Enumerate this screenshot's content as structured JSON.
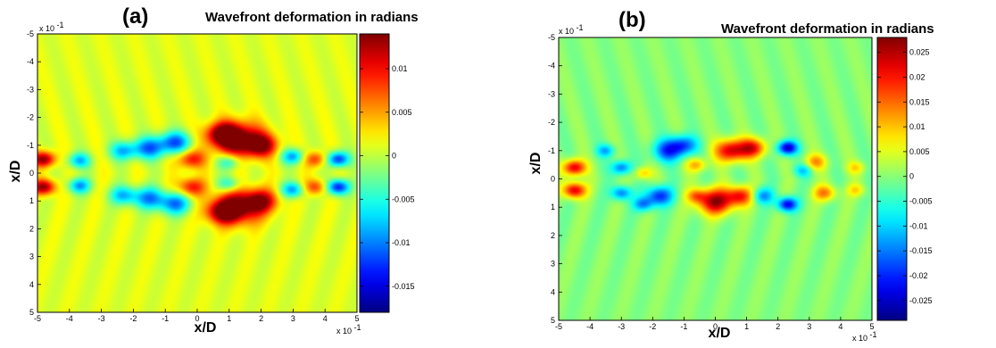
{
  "chart_data": [
    {
      "type": "heatmap",
      "panel_label": "(a)",
      "title": "Wavefront deformation in radians",
      "xlabel": "x/D",
      "ylabel": "x/D",
      "axis_multiplier": "x 10",
      "axis_multiplier_exp": "-1",
      "xlim": [
        -5,
        5
      ],
      "ylim": [
        -5,
        5
      ],
      "y_reversed": true,
      "x_ticks": [
        "-5",
        "-4",
        "-3",
        "-2",
        "-1",
        "0",
        "1",
        "2",
        "3",
        "4",
        "5"
      ],
      "y_ticks": [
        "-5",
        "-4",
        "-3",
        "-2",
        "-1",
        "0",
        "1",
        "2",
        "3",
        "4",
        "5"
      ],
      "colormap": "jet",
      "clim": [
        -0.018,
        0.014
      ],
      "colorbar_ticks": [
        "0.01",
        "0.005",
        "0",
        "-0.005",
        "-0.01",
        "-0.015"
      ],
      "colorbar_values": [
        0.01,
        0.005,
        0,
        -0.005,
        -0.01,
        -0.015
      ],
      "background_value": 0.001,
      "features": [
        {
          "x": 1.3,
          "y": -1.2,
          "value": 0.014,
          "width": 0.55
        },
        {
          "x": 2.0,
          "y": -1.0,
          "value": 0.011,
          "width": 0.35
        },
        {
          "x": 0.8,
          "y": -1.4,
          "value": 0.012,
          "width": 0.35
        },
        {
          "x": 1.3,
          "y": 1.2,
          "value": 0.013,
          "width": 0.55
        },
        {
          "x": 2.0,
          "y": 1.0,
          "value": 0.01,
          "width": 0.35
        },
        {
          "x": 0.8,
          "y": 1.4,
          "value": 0.011,
          "width": 0.35
        },
        {
          "x": -0.7,
          "y": -1.1,
          "value": -0.012,
          "width": 0.35
        },
        {
          "x": -1.5,
          "y": -0.9,
          "value": -0.011,
          "width": 0.35
        },
        {
          "x": -2.3,
          "y": -0.8,
          "value": -0.009,
          "width": 0.3
        },
        {
          "x": -0.7,
          "y": 1.1,
          "value": -0.011,
          "width": 0.35
        },
        {
          "x": -1.5,
          "y": 0.9,
          "value": -0.01,
          "width": 0.35
        },
        {
          "x": -2.3,
          "y": 0.8,
          "value": -0.009,
          "width": 0.3
        },
        {
          "x": -4.8,
          "y": -0.5,
          "value": 0.013,
          "width": 0.25
        },
        {
          "x": -4.8,
          "y": 0.5,
          "value": 0.013,
          "width": 0.25
        },
        {
          "x": 4.4,
          "y": -0.5,
          "value": -0.014,
          "width": 0.25
        },
        {
          "x": 4.4,
          "y": 0.5,
          "value": -0.015,
          "width": 0.25
        },
        {
          "x": -3.7,
          "y": -0.45,
          "value": -0.009,
          "width": 0.25
        },
        {
          "x": -3.7,
          "y": 0.45,
          "value": -0.01,
          "width": 0.25
        },
        {
          "x": 3.0,
          "y": -0.6,
          "value": -0.01,
          "width": 0.25
        },
        {
          "x": 3.0,
          "y": 0.6,
          "value": -0.01,
          "width": 0.25
        },
        {
          "x": -0.2,
          "y": -0.5,
          "value": 0.009,
          "width": 0.3
        },
        {
          "x": -0.2,
          "y": 0.5,
          "value": 0.009,
          "width": 0.3
        },
        {
          "x": 3.7,
          "y": -0.5,
          "value": 0.008,
          "width": 0.25
        },
        {
          "x": 3.7,
          "y": 0.5,
          "value": 0.008,
          "width": 0.25
        },
        {
          "x": 1.0,
          "y": -0.4,
          "value": -0.007,
          "width": 0.25
        },
        {
          "x": 1.0,
          "y": 0.4,
          "value": -0.007,
          "width": 0.25
        }
      ]
    },
    {
      "type": "heatmap",
      "panel_label": "(b)",
      "title": "Wavefront deformation in radians",
      "xlabel": "x/D",
      "ylabel": "x/D",
      "axis_multiplier": "x 10",
      "axis_multiplier_exp": "-1",
      "xlim": [
        -5,
        5
      ],
      "ylim": [
        -5,
        5
      ],
      "y_reversed": true,
      "x_ticks": [
        "-5",
        "-4",
        "-3",
        "-2",
        "-1",
        "0",
        "1",
        "2",
        "3",
        "4",
        "5"
      ],
      "y_ticks": [
        "-5",
        "-4",
        "-3",
        "-2",
        "-1",
        "0",
        "1",
        "2",
        "3",
        "4",
        "5"
      ],
      "colormap": "jet",
      "clim": [
        -0.029,
        0.028
      ],
      "colorbar_ticks": [
        "0.025",
        "0.02",
        "0.015",
        "0.01",
        "0.005",
        "0",
        "-0.005",
        "-0.01",
        "-0.015",
        "-0.02",
        "-0.025"
      ],
      "colorbar_values": [
        0.025,
        0.02,
        0.015,
        0.01,
        0.005,
        0,
        -0.005,
        -0.01,
        -0.015,
        -0.02,
        -0.025
      ],
      "background_value": 0.0,
      "features": [
        {
          "x": 0.5,
          "y": -1.0,
          "value": 0.024,
          "width": 0.35
        },
        {
          "x": 1.2,
          "y": -1.1,
          "value": 0.02,
          "width": 0.3
        },
        {
          "x": 0.0,
          "y": 0.8,
          "value": 0.026,
          "width": 0.4
        },
        {
          "x": 0.8,
          "y": 0.6,
          "value": 0.02,
          "width": 0.3
        },
        {
          "x": 2.3,
          "y": -1.1,
          "value": -0.026,
          "width": 0.22
        },
        {
          "x": 2.3,
          "y": 0.9,
          "value": -0.024,
          "width": 0.22
        },
        {
          "x": -4.5,
          "y": -0.4,
          "value": 0.024,
          "width": 0.25
        },
        {
          "x": -4.5,
          "y": 0.4,
          "value": 0.024,
          "width": 0.25
        },
        {
          "x": -1.5,
          "y": -1.0,
          "value": -0.018,
          "width": 0.35
        },
        {
          "x": -1.0,
          "y": -1.2,
          "value": -0.016,
          "width": 0.3
        },
        {
          "x": -1.8,
          "y": 0.6,
          "value": -0.02,
          "width": 0.3
        },
        {
          "x": -3.0,
          "y": -0.4,
          "value": -0.016,
          "width": 0.22
        },
        {
          "x": -3.0,
          "y": 0.5,
          "value": -0.016,
          "width": 0.22
        },
        {
          "x": 1.5,
          "y": 0.6,
          "value": -0.014,
          "width": 0.25
        },
        {
          "x": 3.2,
          "y": -0.6,
          "value": 0.012,
          "width": 0.25
        },
        {
          "x": 3.5,
          "y": 0.5,
          "value": 0.014,
          "width": 0.25
        },
        {
          "x": -0.6,
          "y": -0.5,
          "value": 0.012,
          "width": 0.22
        },
        {
          "x": -0.6,
          "y": 0.6,
          "value": 0.012,
          "width": 0.22
        },
        {
          "x": -2.3,
          "y": -0.2,
          "value": 0.01,
          "width": 0.2
        },
        {
          "x": -3.5,
          "y": -1.0,
          "value": -0.012,
          "width": 0.2
        },
        {
          "x": 4.5,
          "y": -0.4,
          "value": 0.008,
          "width": 0.2
        },
        {
          "x": 4.5,
          "y": 0.4,
          "value": 0.008,
          "width": 0.2
        },
        {
          "x": -2.3,
          "y": 0.9,
          "value": -0.014,
          "width": 0.22
        },
        {
          "x": 2.8,
          "y": -0.3,
          "value": -0.01,
          "width": 0.2
        }
      ]
    }
  ]
}
